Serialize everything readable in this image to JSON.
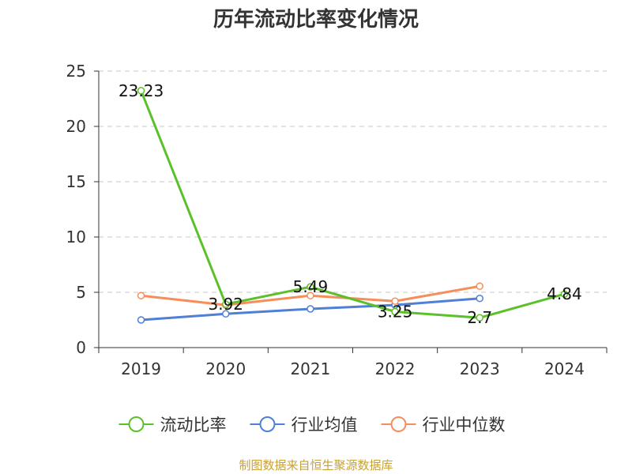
{
  "chart_data": {
    "type": "line",
    "title": "历年流动比率变化情况",
    "categories": [
      "2019",
      "2020",
      "2021",
      "2022",
      "2023",
      "2024"
    ],
    "ylim": [
      0,
      25
    ],
    "yticks": [
      0,
      5,
      10,
      15,
      20,
      25
    ],
    "grid": true,
    "legend_position": "bottom",
    "series": [
      {
        "name": "流动比率",
        "color": "#5cc02a",
        "values": [
          23.23,
          3.92,
          5.49,
          3.25,
          2.7,
          4.84
        ],
        "data_labels": [
          "23.23",
          "3.92",
          "5.49",
          "3.25",
          "2.7",
          "4.84"
        ]
      },
      {
        "name": "行业均值",
        "color": "#4f7fd8",
        "values": [
          2.5,
          3.05,
          3.5,
          3.85,
          4.45,
          null
        ]
      },
      {
        "name": "行业中位数",
        "color": "#f58e5a",
        "values": [
          4.7,
          3.85,
          4.7,
          4.2,
          5.55,
          null
        ]
      }
    ]
  },
  "footer": {
    "source": "制图数据来自恒生聚源数据库"
  }
}
